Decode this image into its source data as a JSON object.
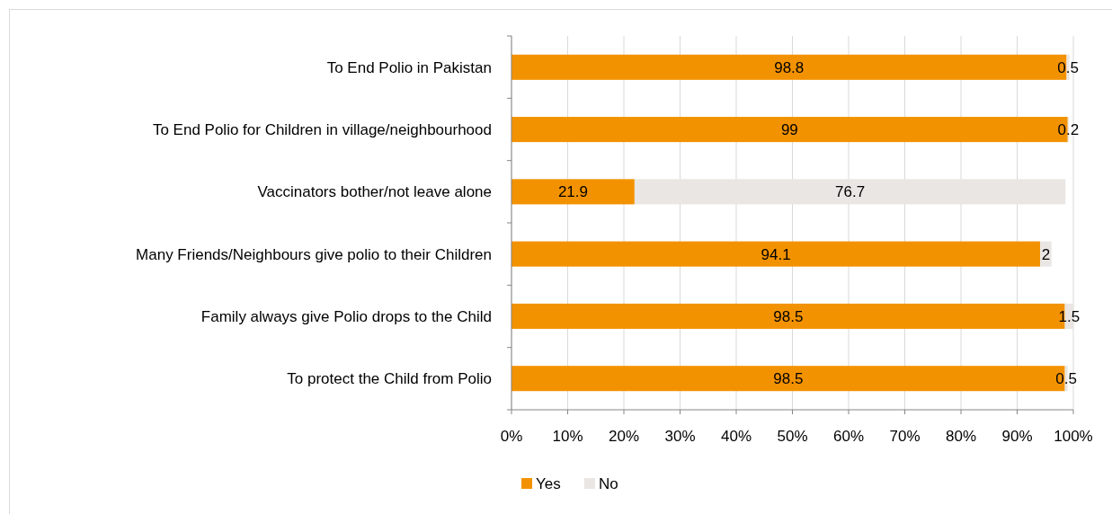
{
  "chart_data": {
    "type": "bar",
    "orientation": "horizontal",
    "stacked": true,
    "categories": [
      "To End Polio in Pakistan",
      "To End Polio for Children in village/neighbourhood",
      "Vaccinators bother/not leave alone",
      "Many Friends/Neighbours give polio to their Children",
      "Family always give Polio drops to the Child",
      "To protect the Child from Polio"
    ],
    "series": [
      {
        "name": "Yes",
        "color": "#f39200",
        "values": [
          98.8,
          99,
          21.9,
          94.1,
          98.5,
          98.5
        ]
      },
      {
        "name": "No",
        "color": "#e9e6e3",
        "values": [
          0.5,
          0.2,
          76.7,
          2,
          1.5,
          0.5
        ]
      }
    ],
    "xlim": [
      0,
      100
    ],
    "xticks": [
      {
        "value": 0,
        "label": "0%"
      },
      {
        "value": 10,
        "label": "10%"
      },
      {
        "value": 20,
        "label": "20%"
      },
      {
        "value": 30,
        "label": "30%"
      },
      {
        "value": 40,
        "label": "40%"
      },
      {
        "value": 50,
        "label": "50%"
      },
      {
        "value": 60,
        "label": "60%"
      },
      {
        "value": 70,
        "label": "70%"
      },
      {
        "value": 80,
        "label": "80%"
      },
      {
        "value": 90,
        "label": "90%"
      },
      {
        "value": 100,
        "label": "100%"
      }
    ],
    "grid": "x",
    "legend": "bottom",
    "data_labels": true
  }
}
